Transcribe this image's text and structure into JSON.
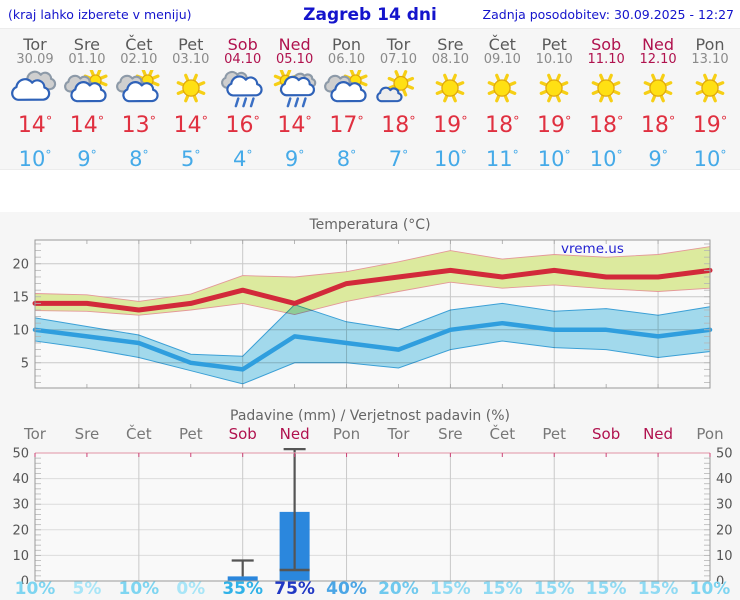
{
  "header": {
    "left": "(kraj lahko izberete v meniju)",
    "title": "Zagreb 14 dni",
    "right": "Zadnja posodobitev: 30.09.2025 - 12:27"
  },
  "colors": {
    "header_blue": "#1414cc",
    "day_gray": "#5a5a5a",
    "date_gray": "#8a8a8a",
    "weekend_crimson": "#b0124e",
    "tmax_red": "#e03040",
    "tmin_blue": "#45aae8",
    "chart_title_gray": "#666666",
    "axis_label_gray": "#555555",
    "grid": "#c9c9c9",
    "grid_light": "#dcdcdc",
    "border": "#999999",
    "band_max_fill": "#dcea9e",
    "band_max_edge": "#e49898",
    "band_min_fill": "#a6dff2",
    "band_min_edge": "#3da4dc",
    "line_max": "#d2293a",
    "line_min": "#2f9ede",
    "bar_blue": "#2b87dd",
    "whisker": "#555555",
    "precip_top_border": "#e6a8b6",
    "precip_day_tick": "#cc4477",
    "watermark_blue": "#1f1fd0",
    "prob_colors": {
      "0": "#a8e5f7",
      "5": "#a8e5f7",
      "10": "#7ed5f1",
      "15": "#8fdaf3",
      "20": "#6fc9ee",
      "35": "#2fb2e8",
      "40": "#4ba6e6",
      "75": "#2038c4"
    }
  },
  "forecast": {
    "days": [
      {
        "name": "Tor",
        "date": "30.09",
        "weekend": false,
        "icon": "cloudy",
        "tmax": 14,
        "tmin": 10
      },
      {
        "name": "Sre",
        "date": "01.10",
        "weekend": false,
        "icon": "partly-cloudy",
        "tmax": 14,
        "tmin": 9
      },
      {
        "name": "Čet",
        "date": "02.10",
        "weekend": false,
        "icon": "partly-cloudy",
        "tmax": 13,
        "tmin": 8
      },
      {
        "name": "Pet",
        "date": "03.10",
        "weekend": false,
        "icon": "sunny",
        "tmax": 14,
        "tmin": 5
      },
      {
        "name": "Sob",
        "date": "04.10",
        "weekend": true,
        "icon": "rain",
        "tmax": 16,
        "tmin": 4
      },
      {
        "name": "Ned",
        "date": "05.10",
        "weekend": true,
        "icon": "sun-rain",
        "tmax": 14,
        "tmin": 9
      },
      {
        "name": "Pon",
        "date": "06.10",
        "weekend": false,
        "icon": "partly-cloudy",
        "tmax": 17,
        "tmin": 8
      },
      {
        "name": "Tor",
        "date": "07.10",
        "weekend": false,
        "icon": "sun-small-cloud",
        "tmax": 18,
        "tmin": 7
      },
      {
        "name": "Sre",
        "date": "08.10",
        "weekend": false,
        "icon": "sunny",
        "tmax": 19,
        "tmin": 10
      },
      {
        "name": "Čet",
        "date": "09.10",
        "weekend": false,
        "icon": "sunny",
        "tmax": 18,
        "tmin": 11
      },
      {
        "name": "Pet",
        "date": "10.10",
        "weekend": false,
        "icon": "sunny",
        "tmax": 19,
        "tmin": 10
      },
      {
        "name": "Sob",
        "date": "11.10",
        "weekend": true,
        "icon": "sunny",
        "tmax": 18,
        "tmin": 10
      },
      {
        "name": "Ned",
        "date": "12.10",
        "weekend": true,
        "icon": "sunny",
        "tmax": 18,
        "tmin": 9
      },
      {
        "name": "Pon",
        "date": "13.10",
        "weekend": false,
        "icon": "sunny",
        "tmax": 19,
        "tmin": 10
      }
    ]
  },
  "chart_data": [
    {
      "type": "area",
      "title": "Temperatura (°C)",
      "watermark": "vreme.us",
      "categories": [
        "Tor 30.09",
        "Sre 01.10",
        "Čet 02.10",
        "Pet 03.10",
        "Sob 04.10",
        "Ned 05.10",
        "Pon 06.10",
        "Tor 07.10",
        "Sre 08.10",
        "Čet 09.10",
        "Pet 10.10",
        "Sob 11.10",
        "Ned 12.10",
        "Pon 13.10"
      ],
      "yticks": [
        5,
        10,
        15,
        20
      ],
      "ylim": [
        1.2,
        23.6
      ],
      "grid": true,
      "series": [
        {
          "name": "max_temp",
          "values": [
            14,
            14,
            13,
            14,
            16,
            14,
            17,
            18,
            19,
            18,
            19,
            18,
            18,
            19
          ]
        },
        {
          "name": "max_temp_band_upper",
          "values": [
            15.5,
            15.3,
            14.3,
            15.4,
            18.2,
            18.0,
            18.8,
            20.3,
            22.0,
            20.7,
            21.4,
            21.0,
            21.4,
            22.6
          ]
        },
        {
          "name": "max_temp_band_lower",
          "values": [
            12.9,
            12.8,
            12.2,
            13.0,
            14.0,
            12.3,
            14.3,
            15.8,
            17.2,
            16.3,
            16.8,
            16.2,
            15.8,
            16.3
          ]
        },
        {
          "name": "min_temp",
          "values": [
            10,
            9,
            8,
            5,
            4,
            9,
            8,
            7,
            10,
            11,
            10,
            10,
            9,
            10
          ]
        },
        {
          "name": "min_temp_band_upper",
          "values": [
            11.8,
            10.5,
            9.2,
            6.3,
            6.0,
            13.8,
            11.2,
            10.0,
            13.0,
            14.0,
            12.8,
            13.2,
            12.2,
            13.5
          ]
        },
        {
          "name": "min_temp_band_lower",
          "values": [
            8.3,
            7.2,
            5.8,
            3.8,
            1.8,
            5.0,
            5.0,
            4.2,
            7.0,
            8.3,
            7.3,
            7.0,
            5.8,
            6.7
          ]
        }
      ]
    },
    {
      "type": "bar",
      "title": "Padavine (mm) / Verjetnost padavin (%)",
      "categories": [
        "Tor",
        "Sre",
        "Čet",
        "Pet",
        "Sob",
        "Ned",
        "Pon",
        "Tor",
        "Sre",
        "Čet",
        "Pet",
        "Sob",
        "Ned",
        "Pon"
      ],
      "weekend": [
        false,
        false,
        false,
        false,
        true,
        true,
        false,
        false,
        false,
        false,
        false,
        true,
        true,
        false
      ],
      "values": [
        0,
        0,
        0,
        0,
        1.8,
        27,
        0,
        0,
        0,
        0,
        0,
        0,
        0,
        0
      ],
      "whisker_high": [
        null,
        null,
        null,
        null,
        8,
        51.5,
        null,
        null,
        null,
        null,
        null,
        null,
        null,
        null
      ],
      "whisker_low": [
        null,
        null,
        null,
        null,
        null,
        4.3,
        null,
        null,
        null,
        null,
        null,
        null,
        null,
        null
      ],
      "probabilities": [
        10,
        5,
        10,
        0,
        35,
        75,
        40,
        20,
        15,
        15,
        15,
        15,
        15,
        10
      ],
      "prob_suffix": "%",
      "ylim": [
        0,
        50
      ],
      "yticks": [
        0,
        10,
        20,
        30,
        40,
        50
      ],
      "grid": true
    }
  ]
}
